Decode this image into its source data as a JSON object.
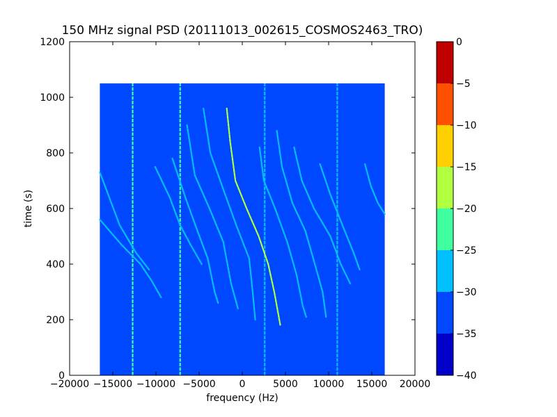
{
  "chart_data": {
    "type": "heatmap",
    "title": "150 MHz signal PSD (20111013_002615_COSMOS2463_TRO)",
    "xlabel": "frequency (Hz)",
    "ylabel": "time (s)",
    "xlim": [
      -20000,
      20000
    ],
    "ylim": [
      0,
      1200
    ],
    "xticks": [
      "−20000",
      "−15000",
      "−10000",
      "−5000",
      "0",
      "5000",
      "10000",
      "15000",
      "20000"
    ],
    "yticks": [
      "0",
      "200",
      "400",
      "600",
      "800",
      "1000",
      "1200"
    ],
    "data_extent": {
      "x": [
        -16500,
        16500
      ],
      "y": [
        0,
        1050
      ]
    },
    "background_level": -32.5,
    "colorbar": {
      "range": [
        -40,
        0
      ],
      "ticks": [
        "−40",
        "−35",
        "−30",
        "−25",
        "−20",
        "−15",
        "−10",
        "−5",
        "0"
      ],
      "levels": [
        {
          "from": -40,
          "to": -35,
          "color": "#0000c8"
        },
        {
          "from": -35,
          "to": -30,
          "color": "#0048ff"
        },
        {
          "from": -30,
          "to": -25,
          "color": "#00c0ff"
        },
        {
          "from": -25,
          "to": -20,
          "color": "#40ffa0"
        },
        {
          "from": -20,
          "to": -15,
          "color": "#b0ff40"
        },
        {
          "from": -15,
          "to": -10,
          "color": "#ffd000"
        },
        {
          "from": -10,
          "to": -5,
          "color": "#ff5000"
        },
        {
          "from": -5,
          "to": 0,
          "color": "#c00000"
        }
      ]
    },
    "constant_lines": [
      {
        "freq": -12700,
        "t": [
          0,
          1050
        ],
        "color": "#40ffa0"
      },
      {
        "freq": -7200,
        "t": [
          0,
          1050
        ],
        "color": "#40ffa0"
      },
      {
        "freq": 2600,
        "t": [
          0,
          1050
        ],
        "color": "#00c0ff"
      },
      {
        "freq": 11000,
        "t": [
          0,
          1050
        ],
        "color": "#00c0ff"
      }
    ],
    "doppler_traces": [
      {
        "t": [
          730,
          540,
          440,
          380
        ],
        "f": [
          -16500,
          -14200,
          -12300,
          -10800
        ],
        "color": "#00c0ff"
      },
      {
        "t": [
          560,
          470,
          400,
          340,
          280
        ],
        "f": [
          -16500,
          -14000,
          -11800,
          -10500,
          -9400
        ],
        "color": "#00c0ff"
      },
      {
        "t": [
          750,
          640,
          540,
          470,
          400
        ],
        "f": [
          -10100,
          -8400,
          -7200,
          -6000,
          -4700
        ],
        "color": "#00c0ff"
      },
      {
        "t": [
          780,
          640,
          520,
          420,
          300,
          260
        ],
        "f": [
          -8100,
          -6600,
          -5200,
          -4000,
          -3200,
          -2800
        ],
        "color": "#00c0ff"
      },
      {
        "t": [
          900,
          720,
          600,
          480,
          330,
          240
        ],
        "f": [
          -6400,
          -5500,
          -3800,
          -2200,
          -1300,
          -500
        ],
        "color": "#00c0ff"
      },
      {
        "t": [
          960,
          800,
          660,
          540,
          420,
          300,
          200
        ],
        "f": [
          -4500,
          -3700,
          -2100,
          -700,
          800,
          1200,
          1500
        ],
        "color": "#00c0ff"
      },
      {
        "t": [
          960,
          840,
          700,
          600,
          500,
          400,
          300,
          180
        ],
        "f": [
          -1800,
          -1400,
          -800,
          500,
          1900,
          3000,
          3700,
          4400
        ],
        "color": "#b0ff40"
      },
      {
        "t": [
          820,
          700,
          600,
          480,
          360,
          250,
          210
        ],
        "f": [
          2000,
          2500,
          3800,
          5200,
          6300,
          7000,
          7400
        ],
        "color": "#00c0ff"
      },
      {
        "t": [
          880,
          750,
          620,
          520,
          400,
          300,
          210
        ],
        "f": [
          4000,
          4600,
          5800,
          7300,
          8400,
          9300,
          9700
        ],
        "color": "#00c0ff"
      },
      {
        "t": [
          820,
          700,
          600,
          500,
          400,
          330
        ],
        "f": [
          6000,
          6900,
          8300,
          10200,
          11400,
          12500
        ],
        "color": "#00c0ff"
      },
      {
        "t": [
          760,
          650,
          540,
          440,
          380
        ],
        "f": [
          9000,
          10200,
          11600,
          12900,
          13600
        ],
        "color": "#00c0ff"
      },
      {
        "t": [
          760,
          680,
          620,
          580
        ],
        "f": [
          14200,
          14900,
          15700,
          16500
        ],
        "color": "#00c0ff"
      }
    ]
  }
}
